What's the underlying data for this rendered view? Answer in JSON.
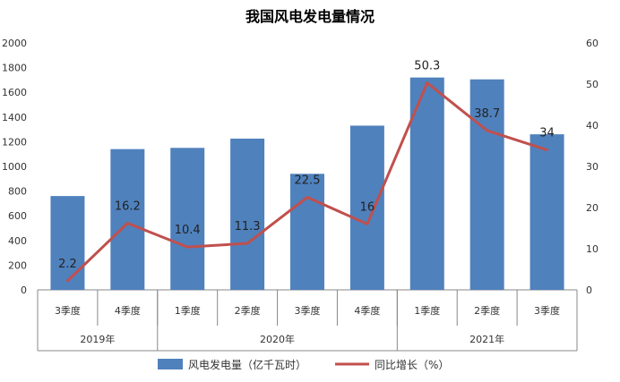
{
  "chart_data": {
    "type": "bar",
    "title": "我国风电发电量情况",
    "categories": [
      "3季度",
      "4季度",
      "1季度",
      "2季度",
      "3季度",
      "4季度",
      "1季度",
      "2季度",
      "3季度"
    ],
    "groups": [
      {
        "label": "2019年",
        "count": 2
      },
      {
        "label": "2020年",
        "count": 4
      },
      {
        "label": "2021年",
        "count": 3
      }
    ],
    "series": [
      {
        "name": "风电发电量（亿千瓦时）",
        "type": "bar",
        "axis": "left",
        "color": "#4f81bd",
        "values": [
          760,
          1140,
          1150,
          1225,
          940,
          1330,
          1720,
          1705,
          1260
        ]
      },
      {
        "name": "同比增长（%）",
        "type": "line",
        "axis": "right",
        "color": "#c0504d",
        "values": [
          2.2,
          16.2,
          10.4,
          11.3,
          22.5,
          16,
          50.3,
          38.7,
          34
        ],
        "labels": [
          "2.2",
          "16.2",
          "10.4",
          "11.3",
          "22.5",
          "16",
          "50.3",
          "38.7",
          "34"
        ]
      }
    ],
    "ylim_left": [
      0,
      2000
    ],
    "ylim_right": [
      0,
      60
    ],
    "yticks_left": [
      0,
      200,
      400,
      600,
      800,
      1000,
      1200,
      1400,
      1600,
      1800,
      2000
    ],
    "yticks_right": [
      0,
      10,
      20,
      30,
      40,
      50,
      60
    ],
    "grid": false,
    "legend_position": "bottom"
  }
}
